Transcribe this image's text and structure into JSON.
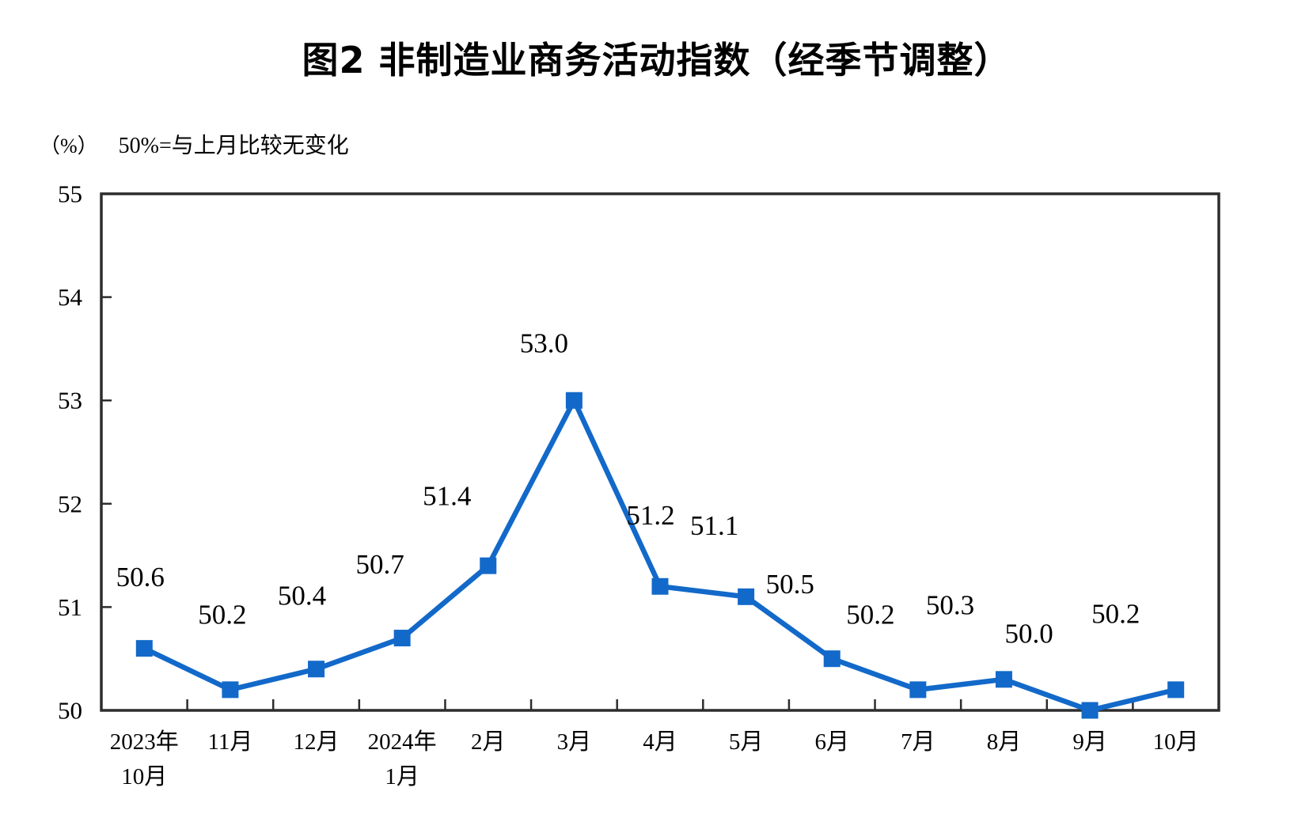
{
  "title": "图2 非制造业商务活动指数（经季节调整）",
  "unit_label": "（%）",
  "note": "50%=与上月比较无变化",
  "colors": {
    "series": "#1269c9",
    "axis": "#2d2d2d",
    "text": "#000000"
  },
  "chart_data": {
    "type": "line",
    "title": "图2 非制造业商务活动指数（经季节调整）",
    "subtitle": "50%=与上月比较无变化",
    "ylabel": "（%）",
    "xlabel": "",
    "categories": [
      [
        "2023年",
        "10月"
      ],
      [
        "11月"
      ],
      [
        "12月"
      ],
      [
        "2024年",
        "1月"
      ],
      [
        "2月"
      ],
      [
        "3月"
      ],
      [
        "4月"
      ],
      [
        "5月"
      ],
      [
        "6月"
      ],
      [
        "7月"
      ],
      [
        "8月"
      ],
      [
        "9月"
      ],
      [
        "10月"
      ]
    ],
    "series": [
      {
        "name": "非制造业商务活动指数",
        "values": [
          50.6,
          50.2,
          50.4,
          50.7,
          51.4,
          53.0,
          51.2,
          51.1,
          50.5,
          50.2,
          50.3,
          50.0,
          50.2
        ],
        "data_labels": [
          "50.6",
          "50.2",
          "50.4",
          "50.7",
          "51.4",
          "53.0",
          "51.2",
          "51.1",
          "50.5",
          "50.2",
          "50.3",
          "50.0",
          "50.2"
        ]
      }
    ],
    "ylim": [
      50,
      55
    ],
    "y_ticks": [
      "50",
      "51",
      "52",
      "53",
      "54",
      "55"
    ],
    "grid": false,
    "legend": false,
    "marker": "square"
  }
}
